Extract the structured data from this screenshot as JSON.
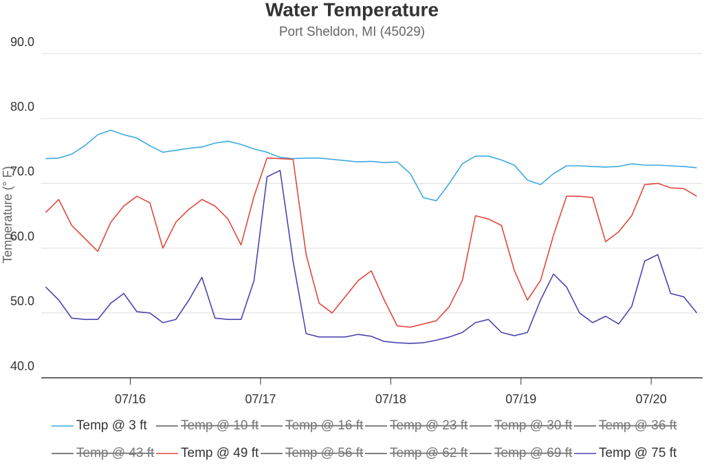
{
  "chart_data": {
    "type": "line",
    "title": "Water Temperature",
    "subtitle": "Port Sheldon, MI (45029)",
    "y_label": "Temperature (° F)",
    "x": [
      15.35,
      15.45,
      15.55,
      15.65,
      15.75,
      15.85,
      15.95,
      16.05,
      16.15,
      16.25,
      16.35,
      16.45,
      16.55,
      16.65,
      16.75,
      16.85,
      16.95,
      17.05,
      17.15,
      17.25,
      17.35,
      17.45,
      17.55,
      17.65,
      17.75,
      17.85,
      17.95,
      18.05,
      18.15,
      18.25,
      18.35,
      18.45,
      18.55,
      18.65,
      18.75,
      18.85,
      18.95,
      19.05,
      19.15,
      19.25,
      19.35,
      19.45,
      19.55,
      19.65,
      19.75,
      19.85,
      19.95,
      20.05,
      20.15,
      20.25,
      20.35
    ],
    "xlim": [
      15.316,
      20.395
    ],
    "xticks": [
      {
        "value": 16,
        "label": "07/16"
      },
      {
        "value": 17,
        "label": "07/17"
      },
      {
        "value": 18,
        "label": "07/18"
      },
      {
        "value": 19,
        "label": "07/19"
      },
      {
        "value": 20,
        "label": "07/20"
      }
    ],
    "ylim": [
      40,
      90
    ],
    "yticks": [
      {
        "value": 40,
        "label": "40.0"
      },
      {
        "value": 50,
        "label": "50.0"
      },
      {
        "value": 60,
        "label": "60.0"
      },
      {
        "value": 70,
        "label": "70.0"
      },
      {
        "value": 80,
        "label": "80.0"
      },
      {
        "value": 90,
        "label": "90.0"
      }
    ],
    "grid": true,
    "series": [
      {
        "name": "Temp @ 3 ft",
        "color": "#3aa9e0",
        "visible": true,
        "values": [
          73.8,
          73.9,
          74.5,
          75.8,
          77.5,
          78.2,
          77.5,
          77.0,
          75.8,
          74.8,
          75.1,
          75.4,
          75.6,
          76.2,
          76.5,
          76.0,
          75.3,
          74.8,
          74.0,
          73.8,
          73.9,
          73.9,
          73.7,
          73.5,
          73.3,
          73.4,
          73.2,
          73.3,
          71.5,
          67.8,
          67.3,
          70.0,
          73.0,
          74.2,
          74.2,
          73.6,
          72.8,
          70.5,
          69.8,
          71.5,
          72.7,
          72.7,
          72.6,
          72.5,
          72.6,
          73.0,
          72.8,
          72.8,
          72.7,
          72.6,
          72.4
        ]
      },
      {
        "name": "Temp @ 10 ft",
        "color": "#555555",
        "visible": false
      },
      {
        "name": "Temp @ 16 ft",
        "color": "#555555",
        "visible": false
      },
      {
        "name": "Temp @ 23 ft",
        "color": "#555555",
        "visible": false
      },
      {
        "name": "Temp @ 30 ft",
        "color": "#555555",
        "visible": false
      },
      {
        "name": "Temp @ 36 ft",
        "color": "#555555",
        "visible": false
      },
      {
        "name": "Temp @ 43 ft",
        "color": "#555555",
        "visible": false
      },
      {
        "name": "Temp @ 49 ft",
        "color": "#e0473c",
        "visible": true,
        "values": [
          65.5,
          67.5,
          63.5,
          61.5,
          59.5,
          64.0,
          66.5,
          68.0,
          67.0,
          60.0,
          64.0,
          66.0,
          67.5,
          66.5,
          64.5,
          60.5,
          68.0,
          73.9,
          73.8,
          73.7,
          59.0,
          51.5,
          50.0,
          52.5,
          55.0,
          56.5,
          52.0,
          48.0,
          47.8,
          48.3,
          48.8,
          51.0,
          55.0,
          65.0,
          64.5,
          63.5,
          56.5,
          52.0,
          55.0,
          62.0,
          68.0,
          68.0,
          67.8,
          61.0,
          62.5,
          65.0,
          69.8,
          70.0,
          69.3,
          69.2,
          68.0
        ]
      },
      {
        "name": "Temp @ 56 ft",
        "color": "#555555",
        "visible": false
      },
      {
        "name": "Temp @ 62 ft",
        "color": "#555555",
        "visible": false
      },
      {
        "name": "Temp @ 69 ft",
        "color": "#555555",
        "visible": false
      },
      {
        "name": "Temp @ 75 ft",
        "color": "#4a43b0",
        "visible": true,
        "values": [
          54.0,
          52.0,
          49.2,
          49.0,
          49.0,
          51.5,
          53.0,
          50.2,
          50.0,
          48.5,
          49.0,
          52.0,
          55.5,
          49.2,
          49.0,
          49.0,
          55.0,
          71.0,
          72.0,
          58.0,
          46.8,
          46.3,
          46.3,
          46.3,
          46.7,
          46.4,
          45.6,
          45.4,
          45.3,
          45.4,
          45.8,
          46.3,
          47.0,
          48.5,
          49.0,
          47.0,
          46.5,
          47.0,
          52.0,
          56.0,
          54.0,
          50.0,
          48.5,
          49.5,
          48.3,
          51.0,
          58.0,
          59.0,
          53.0,
          52.5,
          50.0
        ]
      }
    ]
  }
}
